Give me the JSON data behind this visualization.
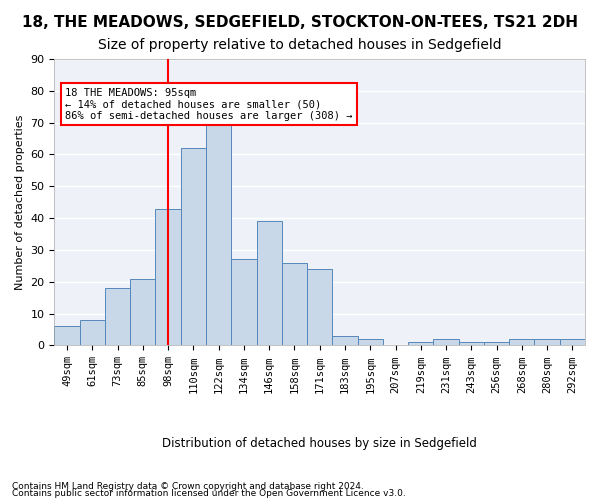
{
  "title1": "18, THE MEADOWS, SEDGEFIELD, STOCKTON-ON-TEES, TS21 2DH",
  "title2": "Size of property relative to detached houses in Sedgefield",
  "xlabel": "Distribution of detached houses by size in Sedgefield",
  "ylabel": "Number of detached properties",
  "categories": [
    "49sqm",
    "61sqm",
    "73sqm",
    "85sqm",
    "98sqm",
    "110sqm",
    "122sqm",
    "134sqm",
    "146sqm",
    "158sqm",
    "171sqm",
    "183sqm",
    "195sqm",
    "207sqm",
    "219sqm",
    "231sqm",
    "243sqm",
    "256sqm",
    "268sqm",
    "280sqm",
    "292sqm"
  ],
  "values": [
    6,
    8,
    18,
    21,
    43,
    62,
    71,
    27,
    39,
    26,
    24,
    3,
    2,
    0,
    1,
    2,
    1,
    1,
    2,
    2,
    2
  ],
  "bar_color": "#c8d8e8",
  "bar_edge_color": "#5588bb",
  "vline_x": 4.0,
  "annotation_text": "18 THE MEADOWS: 95sqm\n← 14% of detached houses are smaller (50)\n86% of semi-detached houses are larger (308) →",
  "annotation_box_color": "white",
  "annotation_box_edge": "red",
  "vline_color": "red",
  "footer1": "Contains HM Land Registry data © Crown copyright and database right 2024.",
  "footer2": "Contains public sector information licensed under the Open Government Licence v3.0.",
  "ylim": [
    0,
    90
  ],
  "yticks": [
    0,
    10,
    20,
    30,
    40,
    50,
    60,
    70,
    80,
    90
  ],
  "bg_color": "#eef2f8",
  "grid_color": "white",
  "title1_fontsize": 11,
  "title2_fontsize": 10
}
